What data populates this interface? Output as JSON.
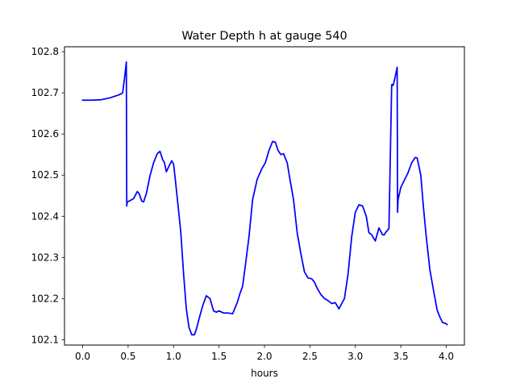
{
  "chart_data": {
    "type": "line",
    "title": "Water Depth h at gauge 540",
    "xlabel": "hours",
    "ylabel": "",
    "xlim": [
      -0.2,
      4.2
    ],
    "ylim": [
      102.087,
      102.812
    ],
    "x_ticks": [
      0.0,
      0.5,
      1.0,
      1.5,
      2.0,
      2.5,
      3.0,
      3.5,
      4.0
    ],
    "x_tick_labels": [
      "0.0",
      "0.5",
      "1.0",
      "1.5",
      "2.0",
      "2.5",
      "3.0",
      "3.5",
      "4.0"
    ],
    "y_ticks": [
      102.1,
      102.2,
      102.3,
      102.4,
      102.5,
      102.6,
      102.7,
      102.8
    ],
    "y_tick_labels": [
      "102.1",
      "102.2",
      "102.3",
      "102.4",
      "102.5",
      "102.6",
      "102.7",
      "102.8"
    ],
    "grid": false,
    "legend": "none",
    "colors": {
      "line": "#0000ff",
      "axes": "#000000",
      "background": "#ffffff"
    },
    "series": [
      {
        "x": [
          0.0,
          0.1,
          0.2,
          0.3,
          0.4,
          0.44,
          0.46,
          0.48,
          0.485,
          0.49,
          0.5,
          0.52,
          0.56,
          0.6,
          0.62,
          0.65,
          0.67,
          0.7,
          0.74,
          0.78,
          0.82,
          0.85,
          0.88,
          0.9,
          0.92,
          0.95,
          0.98,
          1.0,
          1.02,
          1.05,
          1.08,
          1.11,
          1.14,
          1.17,
          1.2,
          1.23,
          1.25,
          1.28,
          1.32,
          1.36,
          1.4,
          1.44,
          1.47,
          1.5,
          1.55,
          1.6,
          1.65,
          1.7,
          1.73,
          1.76,
          1.79,
          1.83,
          1.87,
          1.92,
          1.97,
          2.01,
          2.05,
          2.09,
          2.12,
          2.15,
          2.18,
          2.21,
          2.25,
          2.28,
          2.32,
          2.36,
          2.4,
          2.44,
          2.48,
          2.52,
          2.55,
          2.58,
          2.62,
          2.66,
          2.7,
          2.74,
          2.78,
          2.82,
          2.86,
          2.88,
          2.92,
          2.96,
          3.0,
          3.04,
          3.08,
          3.12,
          3.15,
          3.18,
          3.22,
          3.26,
          3.3,
          3.32,
          3.33,
          3.35,
          3.37,
          3.4,
          3.41,
          3.415,
          3.42,
          3.44,
          3.46,
          3.465,
          3.47,
          3.5,
          3.54,
          3.58,
          3.62,
          3.66,
          3.68,
          3.72,
          3.75,
          3.78,
          3.82,
          3.86,
          3.9,
          3.93,
          3.96,
          3.99,
          4.01
        ],
        "y": [
          102.682,
          102.682,
          102.683,
          102.688,
          102.695,
          102.7,
          102.735,
          102.775,
          102.425,
          102.435,
          102.436,
          102.438,
          102.443,
          102.46,
          102.456,
          102.437,
          102.435,
          102.455,
          102.498,
          102.53,
          102.552,
          102.558,
          102.538,
          102.53,
          102.508,
          102.522,
          102.535,
          102.527,
          102.488,
          102.425,
          102.36,
          102.26,
          102.175,
          102.13,
          102.112,
          102.112,
          102.125,
          102.15,
          102.182,
          102.207,
          102.2,
          102.17,
          102.167,
          102.17,
          102.165,
          102.165,
          102.163,
          102.19,
          102.212,
          102.23,
          102.28,
          102.35,
          102.44,
          102.49,
          102.515,
          102.53,
          102.56,
          102.582,
          102.58,
          102.56,
          102.55,
          102.552,
          102.53,
          102.49,
          102.44,
          102.36,
          102.31,
          102.265,
          102.25,
          102.248,
          102.24,
          102.225,
          102.21,
          102.2,
          102.195,
          102.188,
          102.19,
          102.175,
          102.192,
          102.2,
          102.26,
          102.35,
          102.41,
          102.428,
          102.425,
          102.4,
          102.36,
          102.355,
          102.34,
          102.372,
          102.355,
          102.355,
          102.36,
          102.365,
          102.37,
          102.72,
          102.72,
          102.718,
          102.722,
          102.74,
          102.762,
          102.41,
          102.44,
          102.47,
          102.488,
          102.506,
          102.53,
          102.543,
          102.542,
          102.5,
          102.42,
          102.35,
          102.27,
          102.22,
          102.172,
          102.155,
          102.142,
          102.14,
          102.137
        ]
      }
    ]
  }
}
